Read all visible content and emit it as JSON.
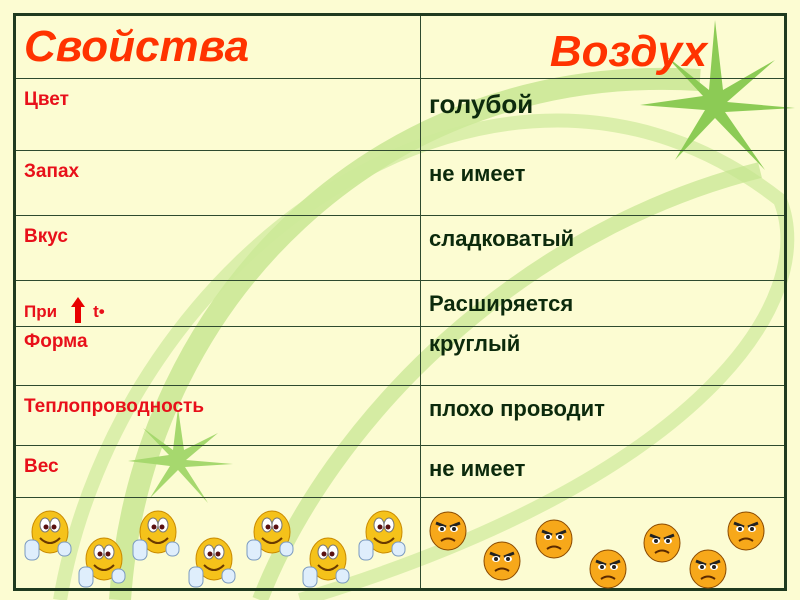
{
  "header": {
    "col1": "Свойства",
    "col2": "Воздух"
  },
  "rows": [
    {
      "property": "Цвет",
      "value": "голубой"
    },
    {
      "property": "Запах",
      "value": "не имеет"
    },
    {
      "property": "Вкус",
      "value": "сладковатый"
    },
    {
      "property": "При",
      "property_suffix": "t•",
      "value": "Расширяется"
    },
    {
      "property": "Форма",
      "value": "круглый"
    },
    {
      "property": "Теплопроводность",
      "value": "плохо проводит"
    },
    {
      "property": "Вес",
      "value": "не имеет"
    }
  ],
  "icons": {
    "happy": "thumbs-up-smiley-icon",
    "angry": "angry-face-icon",
    "arrow": "arrow-up-icon"
  },
  "colors": {
    "property_text": "#e8101a",
    "header_text": "#ff3300",
    "value_text": "#0c2a0c",
    "background": "#fcfcd2",
    "decor": "#9fd36a"
  }
}
